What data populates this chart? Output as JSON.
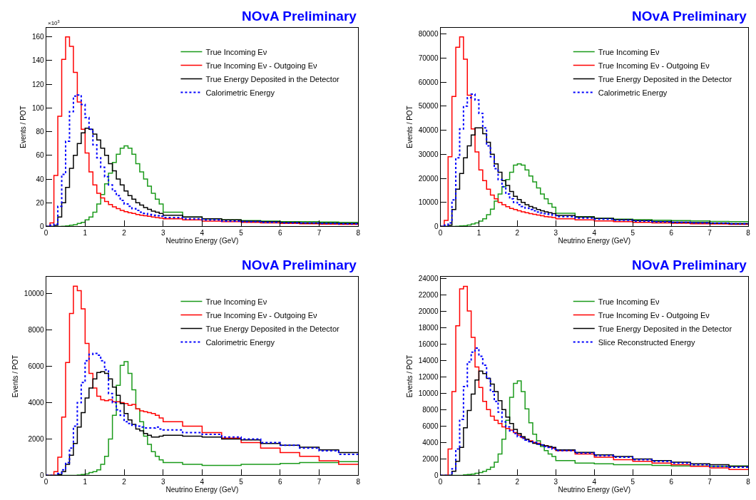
{
  "chart_data": [
    {
      "type": "histogram",
      "title": "NOvA Preliminary",
      "xlabel": "Neutrino Energy (GeV)",
      "ylabel": "Events / POT",
      "annotations": [
        "×10$^{3}$"
      ],
      "xlim": [
        0,
        8
      ],
      "xticks": [
        0,
        1,
        2,
        3,
        4,
        5,
        6,
        7,
        8
      ],
      "ylim": [
        0,
        168
      ],
      "yticks": [
        0,
        20,
        40,
        60,
        80,
        100,
        120,
        140,
        160
      ],
      "legend": "top right",
      "bins": [
        0,
        0.1,
        0.2,
        0.3,
        0.4,
        0.5,
        0.6,
        0.7,
        0.8,
        0.9,
        1.0,
        1.1,
        1.2,
        1.3,
        1.4,
        1.5,
        1.6,
        1.7,
        1.8,
        1.9,
        2.0,
        2.1,
        2.2,
        2.3,
        2.4,
        2.5,
        2.6,
        2.7,
        2.8,
        2.9,
        3.0,
        3.5,
        4.0,
        4.5,
        5.0,
        5.5,
        6.0,
        6.5,
        7.0,
        7.5,
        8.0
      ],
      "series": [
        {
          "name": "True Incoming Eν",
          "color": "#1a9a1a",
          "values": [
            0,
            0,
            0,
            0,
            0.2,
            0.5,
            1,
            1.5,
            2.5,
            3.5,
            5.5,
            8,
            12,
            19,
            27,
            36,
            45,
            54,
            61,
            66,
            68,
            66,
            61,
            53,
            46,
            40,
            34,
            28,
            23,
            19,
            12,
            8,
            6.5,
            5.5,
            5,
            4.5,
            4,
            4,
            3.8,
            3.5
          ]
        },
        {
          "name": "True Incoming Eν - Outgoing Eν",
          "color": "#ff0000",
          "values": [
            0,
            3,
            43,
            93,
            141,
            160,
            152,
            130,
            105,
            82,
            62,
            46,
            35,
            28,
            24,
            21,
            18.5,
            16.5,
            15,
            13.5,
            12.5,
            11.5,
            11,
            10,
            9.5,
            9,
            8.5,
            8,
            7.5,
            7,
            6.5,
            5.5,
            4.5,
            4,
            3.5,
            3,
            2.5,
            2.2,
            2,
            1.8
          ]
        },
        {
          "name": "True Energy Deposited in the Detector",
          "color": "#000000",
          "values": [
            0,
            0,
            1,
            8,
            20,
            33,
            49,
            60,
            70,
            79,
            83,
            82,
            78,
            73,
            66,
            60,
            53,
            47,
            40,
            35,
            30,
            26,
            23,
            20,
            18,
            16,
            14.5,
            13,
            12,
            11,
            9.5,
            8,
            6.5,
            5.5,
            4.5,
            4,
            3.5,
            3,
            2.8,
            2.5
          ]
        },
        {
          "name": "Calorimetric Energy",
          "color": "#0000ff",
          "line_style": "dotted",
          "values": [
            0,
            1,
            2,
            17,
            44,
            72,
            97,
            110,
            111,
            103,
            92,
            82,
            69,
            58,
            50,
            42,
            35,
            30,
            26,
            22,
            19,
            17,
            15,
            13.5,
            12,
            11,
            10,
            9.5,
            9,
            8.5,
            7.5,
            6.5,
            5.5,
            4.5,
            4,
            3.5,
            3,
            2.8,
            2.5,
            2.3
          ]
        }
      ]
    },
    {
      "type": "histogram",
      "title": "NOvA Preliminary",
      "xlabel": "Neutrino Energy (GeV)",
      "ylabel": "Events / POT",
      "xlim": [
        0,
        8
      ],
      "xticks": [
        0,
        1,
        2,
        3,
        4,
        5,
        6,
        7,
        8
      ],
      "ylim": [
        0,
        82700
      ],
      "yticks": [
        0,
        10000,
        20000,
        30000,
        40000,
        50000,
        60000,
        70000,
        80000
      ],
      "legend": "top right",
      "bins": [
        0,
        0.1,
        0.2,
        0.3,
        0.4,
        0.5,
        0.6,
        0.7,
        0.8,
        0.9,
        1.0,
        1.1,
        1.2,
        1.3,
        1.4,
        1.5,
        1.6,
        1.7,
        1.8,
        1.9,
        2.0,
        2.1,
        2.2,
        2.3,
        2.4,
        2.5,
        2.6,
        2.7,
        2.8,
        2.9,
        3.0,
        3.5,
        4.0,
        4.5,
        5.0,
        5.5,
        6.0,
        6.5,
        7.0,
        7.5,
        8.0
      ],
      "series": [
        {
          "name": "True Incoming Eν",
          "color": "#1a9a1a",
          "values": [
            0,
            0,
            0,
            0,
            100,
            200,
            300,
            600,
            1000,
            1500,
            2200,
            3200,
            4900,
            7200,
            10500,
            13500,
            16500,
            19500,
            22500,
            25500,
            26000,
            25500,
            23500,
            21000,
            18500,
            16000,
            13500,
            11500,
            9500,
            8000,
            5500,
            4100,
            3400,
            3000,
            2800,
            2600,
            2400,
            2300,
            2100,
            2000
          ]
        },
        {
          "name": "True Incoming Eν - Outgoing Eν",
          "color": "#ff0000",
          "values": [
            0,
            2500,
            29000,
            54000,
            74500,
            78800,
            69500,
            54500,
            40500,
            31000,
            23500,
            19000,
            15500,
            13000,
            11500,
            10000,
            9000,
            8200,
            7500,
            7000,
            6500,
            6100,
            5700,
            5300,
            5000,
            4700,
            4400,
            4100,
            3900,
            3700,
            3200,
            2700,
            2300,
            2000,
            1700,
            1500,
            1300,
            1100,
            1000,
            900
          ]
        },
        {
          "name": "True Energy Deposited in the Detector",
          "color": "#000000",
          "values": [
            0,
            0,
            500,
            7000,
            15500,
            22000,
            28500,
            33500,
            38000,
            41000,
            41000,
            38500,
            35000,
            30000,
            26000,
            22500,
            19000,
            17000,
            14500,
            12500,
            11200,
            10000,
            9000,
            8300,
            7700,
            7000,
            6500,
            6100,
            5700,
            5300,
            4600,
            3900,
            3300,
            2800,
            2400,
            2100,
            1800,
            1600,
            1400,
            1200
          ]
        },
        {
          "name": "Calorimetric Energy",
          "color": "#0000ff",
          "line_style": "dotted",
          "values": [
            0,
            500,
            1500,
            11000,
            28500,
            40500,
            50000,
            53500,
            55000,
            52500,
            47000,
            41000,
            33500,
            29000,
            24000,
            19500,
            16500,
            13500,
            11500,
            10000,
            9000,
            8300,
            7600,
            7000,
            6500,
            6000,
            5600,
            5300,
            5000,
            4700,
            4100,
            3500,
            3000,
            2600,
            2200,
            1900,
            1700,
            1500,
            1300,
            1100
          ]
        }
      ]
    },
    {
      "type": "histogram",
      "title": "NOvA Preliminary",
      "xlabel": "Neutrino Energy (GeV)",
      "ylabel": "Events / POT",
      "xlim": [
        0,
        8
      ],
      "xticks": [
        0,
        1,
        2,
        3,
        4,
        5,
        6,
        7,
        8
      ],
      "ylim": [
        0,
        10900
      ],
      "yticks": [
        0,
        2000,
        4000,
        6000,
        8000,
        10000
      ],
      "legend": "top right",
      "bins": [
        0,
        0.1,
        0.2,
        0.3,
        0.4,
        0.5,
        0.6,
        0.7,
        0.8,
        0.9,
        1.0,
        1.1,
        1.2,
        1.3,
        1.4,
        1.5,
        1.6,
        1.7,
        1.8,
        1.9,
        2.0,
        2.1,
        2.2,
        2.3,
        2.4,
        2.5,
        2.6,
        2.7,
        2.8,
        2.9,
        3.0,
        3.5,
        4.0,
        4.5,
        5.0,
        5.5,
        6.0,
        6.5,
        7.0,
        7.5,
        8.0
      ],
      "series": [
        {
          "name": "True Incoming Eν",
          "color": "#1a9a1a",
          "values": [
            0,
            0,
            0,
            0,
            0,
            0,
            0,
            0,
            20,
            50,
            80,
            150,
            200,
            300,
            600,
            1050,
            2000,
            3300,
            4950,
            6050,
            6250,
            5600,
            4700,
            3650,
            2950,
            2150,
            1700,
            1300,
            1050,
            850,
            700,
            600,
            550,
            550,
            600,
            600,
            650,
            700,
            700,
            750
          ]
        },
        {
          "name": "True Incoming Eν - Outgoing Eν",
          "color": "#ff0000",
          "values": [
            0,
            0,
            200,
            1000,
            3200,
            6200,
            8900,
            10400,
            10150,
            9150,
            7250,
            5600,
            4800,
            4350,
            4150,
            4100,
            4150,
            4050,
            4050,
            4000,
            3950,
            3850,
            3900,
            3650,
            3550,
            3500,
            3450,
            3400,
            3300,
            3150,
            2950,
            2700,
            2350,
            2050,
            1800,
            1500,
            1250,
            1050,
            800,
            600
          ]
        },
        {
          "name": "True Energy Deposited in the Detector",
          "color": "#000000",
          "values": [
            0,
            0,
            0,
            50,
            200,
            600,
            1100,
            1750,
            2650,
            3450,
            4250,
            4800,
            5300,
            5650,
            5700,
            5600,
            5300,
            4850,
            4400,
            3950,
            3400,
            3050,
            2800,
            2550,
            2450,
            2300,
            2200,
            2100,
            2100,
            2150,
            2200,
            2150,
            2100,
            2000,
            1950,
            1750,
            1650,
            1550,
            1400,
            1250
          ]
        },
        {
          "name": "Calorimetric Energy",
          "color": "#0000ff",
          "line_style": "dotted",
          "values": [
            0,
            0,
            0,
            100,
            300,
            700,
            1500,
            2700,
            4000,
            5100,
            6300,
            6650,
            6700,
            6600,
            6300,
            5800,
            4500,
            4000,
            3600,
            3300,
            2950,
            2850,
            2750,
            2700,
            2650,
            2600,
            2600,
            2600,
            2650,
            2550,
            2500,
            2350,
            2250,
            2100,
            2000,
            1800,
            1650,
            1500,
            1350,
            1150
          ]
        }
      ]
    },
    {
      "type": "histogram",
      "title": "NOvA Preliminary",
      "xlabel": "Neutrino Energy (GeV)",
      "ylabel": "Events / POT",
      "xlim": [
        0,
        8
      ],
      "xticks": [
        0,
        1,
        2,
        3,
        4,
        5,
        6,
        7,
        8
      ],
      "ylim": [
        0,
        24140
      ],
      "yticks": [
        0,
        2000,
        4000,
        6000,
        8000,
        10000,
        12000,
        14000,
        16000,
        18000,
        20000,
        22000,
        24000
      ],
      "legend": "top right",
      "bins": [
        0,
        0.1,
        0.2,
        0.3,
        0.4,
        0.5,
        0.6,
        0.7,
        0.8,
        0.9,
        1.0,
        1.1,
        1.2,
        1.3,
        1.4,
        1.5,
        1.6,
        1.7,
        1.8,
        1.9,
        2.0,
        2.1,
        2.2,
        2.3,
        2.4,
        2.5,
        2.6,
        2.7,
        2.8,
        2.9,
        3.0,
        3.5,
        4.0,
        4.5,
        5.0,
        5.5,
        6.0,
        6.5,
        7.0,
        7.5,
        8.0
      ],
      "series": [
        {
          "name": "True Incoming Eν",
          "color": "#1a9a1a",
          "values": [
            0,
            0,
            0,
            0,
            0,
            0,
            50,
            100,
            150,
            250,
            350,
            500,
            700,
            1000,
            1600,
            2600,
            4400,
            6700,
            9500,
            11200,
            11500,
            10200,
            8100,
            6400,
            5000,
            4200,
            3500,
            3000,
            2600,
            2300,
            1800,
            1500,
            1400,
            1300,
            1300,
            1200,
            1150,
            1150,
            1100,
            1150
          ]
        },
        {
          "name": "True Incoming Eν - Outgoing Eν",
          "color": "#ff0000",
          "values": [
            0,
            0,
            3200,
            10200,
            18200,
            22700,
            23000,
            20000,
            16800,
            13200,
            10700,
            9000,
            8000,
            7200,
            6700,
            6300,
            5900,
            5700,
            5500,
            5200,
            4900,
            4600,
            4400,
            4200,
            4000,
            3900,
            3700,
            3600,
            3400,
            3300,
            3000,
            2600,
            2200,
            1900,
            1700,
            1500,
            1300,
            1100,
            900,
            700
          ]
        },
        {
          "name": "True Energy Deposited in the Detector",
          "color": "#000000",
          "values": [
            0,
            0,
            0,
            500,
            1700,
            3400,
            5800,
            7900,
            9900,
            11600,
            12700,
            12400,
            11800,
            11100,
            10200,
            9100,
            8000,
            7100,
            6300,
            5600,
            5100,
            4700,
            4400,
            4100,
            3900,
            3800,
            3700,
            3600,
            3500,
            3400,
            3100,
            2800,
            2500,
            2300,
            2000,
            1800,
            1600,
            1400,
            1300,
            1100
          ]
        },
        {
          "name": "Slice Reconstructed Energy",
          "color": "#0000ff",
          "line_style": "dotted",
          "values": [
            0,
            0,
            0,
            800,
            3200,
            6800,
            10800,
            13800,
            15000,
            15500,
            14500,
            13400,
            11800,
            10200,
            9000,
            7700,
            6500,
            5900,
            5400,
            5100,
            4700,
            4500,
            4300,
            4100,
            4000,
            3800,
            3700,
            3500,
            3400,
            3200,
            3000,
            2700,
            2400,
            2200,
            1900,
            1700,
            1500,
            1300,
            1100,
            1000
          ]
        }
      ]
    }
  ]
}
